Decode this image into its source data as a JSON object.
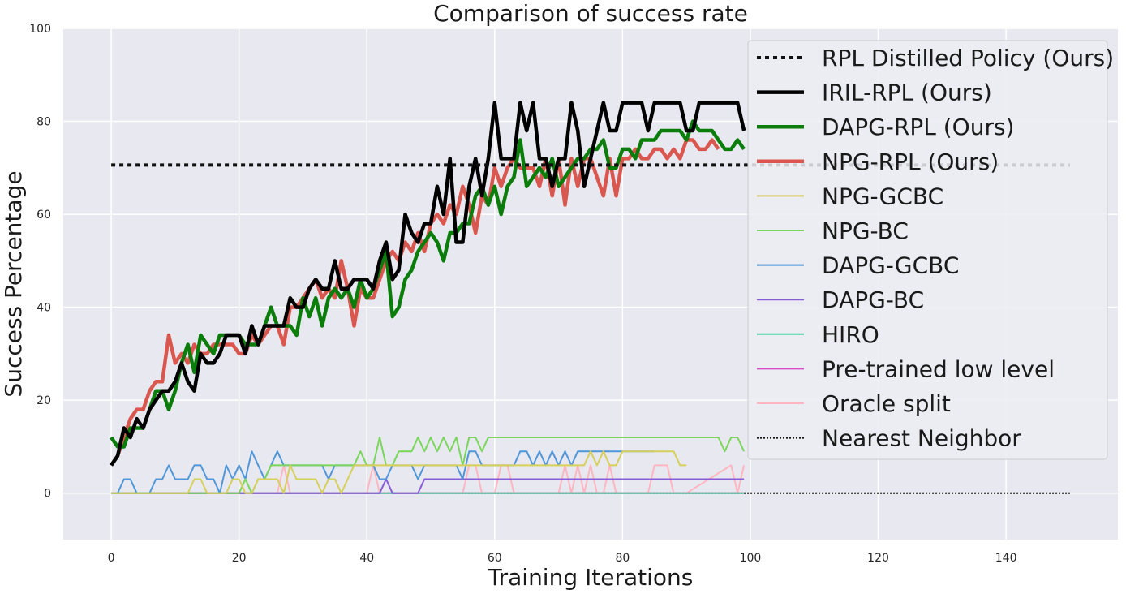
{
  "chart_data": {
    "type": "line",
    "title": "Comparison of success rate",
    "xlabel": "Training Iterations",
    "ylabel": "Success Percentage",
    "xlim": [
      -7.5,
      157.5
    ],
    "ylim": [
      -10,
      100
    ],
    "xticks": [
      0,
      20,
      40,
      60,
      80,
      100,
      120,
      140
    ],
    "yticks": [
      0,
      20,
      40,
      60,
      80,
      100
    ],
    "grid": true,
    "legend_position": "top-right",
    "series": [
      {
        "name": "RPL Distilled Policy (Ours)",
        "color": "#111111",
        "style": "dotted-thick",
        "x": [
          0,
          150
        ],
        "y": [
          70.6,
          70.6
        ]
      },
      {
        "name": "IRIL-RPL (Ours)",
        "color": "#000000",
        "style": "solid-thick",
        "x": [
          0,
          1,
          2,
          3,
          4,
          5,
          6,
          7,
          8,
          9,
          10,
          11,
          12,
          13,
          14,
          15,
          16,
          17,
          18,
          19,
          20,
          21,
          22,
          23,
          24,
          25,
          26,
          27,
          28,
          29,
          30,
          31,
          32,
          33,
          34,
          35,
          36,
          37,
          38,
          39,
          40,
          41,
          42,
          43,
          44,
          45,
          46,
          47,
          48,
          49,
          50,
          51,
          52,
          53,
          54,
          55,
          56,
          57,
          58,
          59,
          60,
          61,
          62,
          63,
          64,
          65,
          66,
          67,
          68,
          69,
          70,
          71,
          72,
          73,
          74,
          75,
          76,
          77,
          78,
          79,
          80,
          81,
          82,
          83,
          84,
          85,
          86,
          87,
          88,
          89,
          90,
          91,
          92,
          93,
          94,
          95,
          96,
          97,
          98,
          99
        ],
        "y": [
          6,
          8,
          14,
          12,
          16,
          14,
          18,
          20,
          22,
          22,
          24,
          28,
          24,
          22,
          30,
          28,
          28,
          30,
          34,
          34,
          34,
          30,
          36,
          32,
          36,
          36,
          36,
          36,
          42,
          40,
          40,
          44,
          46,
          44,
          44,
          50,
          44,
          44,
          46,
          46,
          46,
          44,
          50,
          54,
          46,
          48,
          60,
          56,
          54,
          58,
          58,
          66,
          60,
          72,
          54,
          54,
          66,
          72,
          64,
          72,
          84,
          72,
          72,
          72,
          84,
          78,
          84,
          72,
          72,
          66,
          72,
          72,
          84,
          78,
          66,
          72,
          78,
          84,
          78,
          78,
          84,
          84,
          84,
          84,
          78,
          84,
          84,
          84,
          84,
          84,
          78,
          78,
          84,
          84,
          84,
          84,
          84,
          84,
          84,
          78
        ]
      },
      {
        "name": "DAPG-RPL (Ours)",
        "color": "#0a7d0a",
        "style": "solid-thick",
        "x": [
          0,
          1,
          2,
          3,
          4,
          5,
          6,
          7,
          8,
          9,
          10,
          11,
          12,
          13,
          14,
          15,
          16,
          17,
          18,
          19,
          20,
          21,
          22,
          23,
          24,
          25,
          26,
          27,
          28,
          29,
          30,
          31,
          32,
          33,
          34,
          35,
          36,
          37,
          38,
          39,
          40,
          41,
          42,
          43,
          44,
          45,
          46,
          47,
          48,
          49,
          50,
          51,
          52,
          53,
          54,
          55,
          56,
          57,
          58,
          59,
          60,
          61,
          62,
          63,
          64,
          65,
          66,
          67,
          68,
          69,
          70,
          71,
          72,
          73,
          74,
          75,
          76,
          77,
          78,
          79,
          80,
          81,
          82,
          83,
          84,
          85,
          86,
          87,
          88,
          89,
          90,
          91,
          92,
          93,
          94,
          95,
          96,
          97,
          98,
          99
        ],
        "y": [
          12,
          10,
          10,
          14,
          14,
          14,
          18,
          22,
          22,
          18,
          22,
          28,
          32,
          26,
          34,
          32,
          30,
          34,
          34,
          34,
          34,
          32,
          32,
          32,
          36,
          40,
          36,
          36,
          36,
          34,
          42,
          38,
          42,
          36,
          42,
          44,
          42,
          44,
          40,
          46,
          42,
          44,
          48,
          52,
          38,
          40,
          46,
          48,
          52,
          54,
          56,
          54,
          50,
          56,
          56,
          58,
          58,
          64,
          66,
          62,
          66,
          60,
          66,
          68,
          76,
          66,
          68,
          70,
          68,
          72,
          66,
          68,
          70,
          72,
          72,
          74,
          74,
          76,
          70,
          70,
          74,
          74,
          72,
          76,
          76,
          76,
          78,
          78,
          78,
          78,
          76,
          80,
          78,
          78,
          78,
          76,
          74,
          74,
          76,
          74
        ]
      },
      {
        "name": "NPG-RPL (Ours)",
        "color": "#d9574e",
        "style": "solid-thick",
        "x": [
          0,
          1,
          2,
          3,
          4,
          5,
          6,
          7,
          8,
          9,
          10,
          11,
          12,
          13,
          14,
          15,
          16,
          17,
          18,
          19,
          20,
          21,
          22,
          23,
          24,
          25,
          26,
          27,
          28,
          29,
          30,
          31,
          32,
          33,
          34,
          35,
          36,
          37,
          38,
          39,
          40,
          41,
          42,
          43,
          44,
          45,
          46,
          47,
          48,
          49,
          50,
          51,
          52,
          53,
          54,
          55,
          56,
          57,
          58,
          59,
          60,
          61,
          62,
          63,
          64,
          65,
          66,
          67,
          68,
          69,
          70,
          71,
          72,
          73,
          74,
          75,
          76,
          77,
          78,
          79,
          80,
          81,
          82,
          83,
          84,
          85,
          86,
          87,
          88,
          89,
          90,
          91,
          92,
          93,
          94,
          95
        ],
        "y": [
          6,
          8,
          12,
          16,
          18,
          18,
          22,
          24,
          24,
          34,
          28,
          30,
          28,
          32,
          30,
          30,
          32,
          32,
          32,
          32,
          30,
          30,
          34,
          32,
          34,
          36,
          36,
          32,
          40,
          40,
          42,
          44,
          46,
          42,
          44,
          42,
          50,
          44,
          36,
          44,
          42,
          42,
          46,
          50,
          52,
          50,
          54,
          52,
          56,
          52,
          58,
          60,
          58,
          62,
          60,
          66,
          62,
          56,
          64,
          62,
          70,
          66,
          70,
          72,
          70,
          70,
          70,
          66,
          72,
          64,
          72,
          62,
          72,
          66,
          72,
          72,
          68,
          64,
          72,
          64,
          72,
          72,
          74,
          72,
          72,
          74,
          74,
          72,
          74,
          72,
          76,
          76,
          74,
          74,
          76,
          74
        ]
      },
      {
        "name": "NPG-GCBC",
        "color": "#d6cf5a",
        "style": "solid-thin",
        "x": [
          0,
          12,
          13,
          14,
          15,
          16,
          18,
          19,
          20,
          21,
          22,
          23,
          24,
          25,
          26,
          27,
          28,
          29,
          30,
          31,
          32,
          33,
          34,
          35,
          36,
          37,
          38,
          39,
          40,
          45,
          50,
          55,
          60,
          65,
          70,
          71,
          72,
          73,
          74,
          75,
          76,
          77,
          78,
          79,
          80,
          81,
          82,
          83,
          84,
          85,
          86,
          87,
          88,
          89,
          90
        ],
        "y": [
          0,
          0,
          3,
          3,
          0,
          0,
          0,
          3,
          3,
          0,
          0,
          3,
          3,
          3,
          3,
          0,
          6,
          3,
          3,
          3,
          3,
          0,
          3,
          3,
          0,
          3,
          6,
          6,
          6,
          6,
          6,
          6,
          6,
          6,
          6,
          6,
          6,
          6,
          6,
          9,
          6,
          9,
          6,
          6,
          9,
          9,
          9,
          9,
          9,
          9,
          9,
          9,
          9,
          6,
          6
        ]
      },
      {
        "name": "NPG-BC",
        "color": "#7ad65a",
        "style": "solid-thin",
        "x": [
          0,
          20,
          21,
          22,
          23,
          24,
          25,
          26,
          27,
          28,
          29,
          30,
          31,
          32,
          33,
          34,
          35,
          36,
          37,
          38,
          39,
          40,
          41,
          42,
          43,
          44,
          45,
          46,
          47,
          48,
          49,
          50,
          51,
          52,
          53,
          54,
          55,
          56,
          57,
          58,
          59,
          60,
          70,
          80,
          90,
          95,
          96,
          97,
          98,
          99
        ],
        "y": [
          0,
          0,
          3,
          0,
          3,
          3,
          6,
          6,
          6,
          6,
          6,
          6,
          6,
          6,
          6,
          6,
          6,
          6,
          6,
          6,
          9,
          6,
          6,
          12,
          6,
          6,
          9,
          9,
          9,
          12,
          9,
          12,
          9,
          12,
          9,
          12,
          6,
          12,
          12,
          9,
          12,
          12,
          12,
          12,
          12,
          12,
          9,
          12,
          12,
          9
        ]
      },
      {
        "name": "DAPG-GCBC",
        "color": "#4f97d8",
        "style": "solid-thin",
        "x": [
          0,
          1,
          2,
          3,
          4,
          5,
          6,
          7,
          8,
          9,
          10,
          11,
          12,
          13,
          14,
          15,
          16,
          17,
          18,
          19,
          20,
          21,
          22,
          23,
          24,
          25,
          26,
          27,
          28,
          29,
          30,
          31,
          32,
          33,
          34,
          35,
          36,
          37,
          38,
          39,
          40,
          41,
          42,
          43,
          44,
          45,
          46,
          47,
          48,
          49,
          50,
          51,
          52,
          53,
          54,
          55,
          56,
          57,
          58,
          59,
          60,
          61,
          62,
          63,
          64,
          65,
          66,
          67,
          68,
          69,
          70,
          71,
          72,
          73,
          74,
          75,
          76,
          77,
          78,
          79,
          80,
          81,
          82,
          83,
          84,
          85
        ],
        "y": [
          0,
          0,
          3,
          3,
          0,
          0,
          0,
          3,
          3,
          6,
          3,
          3,
          3,
          6,
          6,
          3,
          3,
          0,
          6,
          3,
          6,
          3,
          9,
          6,
          3,
          6,
          9,
          6,
          6,
          6,
          6,
          6,
          6,
          6,
          3,
          6,
          6,
          6,
          6,
          6,
          6,
          6,
          3,
          3,
          6,
          6,
          6,
          6,
          3,
          6,
          6,
          6,
          6,
          6,
          6,
          3,
          9,
          9,
          6,
          6,
          6,
          6,
          6,
          6,
          9,
          9,
          6,
          9,
          6,
          9,
          6,
          9,
          6,
          9,
          9,
          9,
          9,
          9,
          9,
          9,
          9,
          9,
          9,
          9,
          9,
          9
        ]
      },
      {
        "name": "DAPG-BC",
        "color": "#8a5bd6",
        "style": "solid-thin",
        "x": [
          0,
          40,
          42,
          43,
          44,
          45,
          46,
          47,
          48,
          49,
          50,
          60,
          70,
          80,
          90,
          99
        ],
        "y": [
          0,
          0,
          0,
          3,
          0,
          0,
          0,
          0,
          0,
          3,
          3,
          3,
          3,
          3,
          3,
          3
        ]
      },
      {
        "name": "HIRO",
        "color": "#4fd6a8",
        "style": "solid-thin",
        "x": [
          0,
          99
        ],
        "y": [
          0,
          0
        ]
      },
      {
        "name": "Pre-trained low level",
        "color": "#d94fc8",
        "style": "solid-thin",
        "x": [
          0,
          99
        ],
        "y": [
          0,
          0
        ]
      },
      {
        "name": "Oracle split",
        "color": "#ffb6c1",
        "style": "solid-thin",
        "x": [
          0,
          1,
          2,
          25,
          26,
          27,
          28,
          29,
          40,
          41,
          42,
          43,
          44,
          55,
          56,
          57,
          58,
          59,
          60,
          61,
          62,
          63,
          70,
          71,
          72,
          73,
          74,
          75,
          76,
          77,
          78,
          79,
          80,
          84,
          85,
          86,
          87,
          88,
          89,
          90,
          97,
          98,
          99
        ],
        "y": [
          0,
          0,
          0,
          0,
          0,
          6,
          0,
          0,
          0,
          6,
          0,
          0,
          0,
          0,
          6,
          6,
          0,
          0,
          0,
          6,
          6,
          0,
          0,
          6,
          0,
          6,
          0,
          6,
          0,
          0,
          6,
          0,
          0,
          0,
          6,
          6,
          6,
          0,
          0,
          0,
          6,
          0,
          6
        ]
      },
      {
        "name": "Nearest Neighbor",
        "color": "#111111",
        "style": "dotted-thin",
        "x": [
          0,
          150
        ],
        "y": [
          0,
          0
        ]
      }
    ]
  }
}
